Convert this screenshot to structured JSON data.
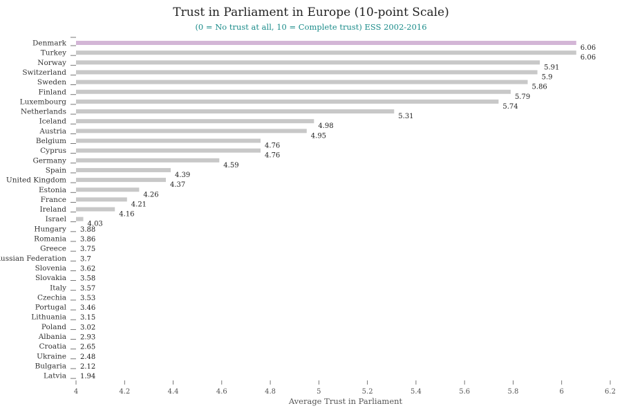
{
  "chart_data": {
    "type": "bar",
    "orientation": "horizontal",
    "title": "Trust in Parliament in Europe (10-point Scale)",
    "subtitle": "(0 = No trust at all, 10 = Complete trust) ESS 2002-2016",
    "xlabel": "Average Trust in Parliament",
    "ylabel": "",
    "xlim": [
      4,
      6.2
    ],
    "xticks": [
      "4",
      "4.2",
      "4.4",
      "4.6",
      "4.8",
      "5",
      "5.2",
      "5.4",
      "5.6",
      "5.8",
      "6",
      "6.2"
    ],
    "categories": [
      "Denmark",
      "Turkey",
      "Norway",
      "Switzerland",
      "Sweden",
      "Finland",
      "Luxembourg",
      "Netherlands",
      "Iceland",
      "Austria",
      "Belgium",
      "Cyprus",
      "Germany",
      "Spain",
      "United Kingdom",
      "Estonia",
      "France",
      "Ireland",
      "Israel",
      "Hungary",
      "Romania",
      "Greece",
      "Russian Federation",
      "Slovenia",
      "Slovakia",
      "Italy",
      "Czechia",
      "Portugal",
      "Lithuania",
      "Poland",
      "Albania",
      "Croatia",
      "Ukraine",
      "Bulgaria",
      "Latvia"
    ],
    "values": [
      6.06,
      6.06,
      5.91,
      5.9,
      5.86,
      5.79,
      5.74,
      5.31,
      4.98,
      4.95,
      4.76,
      4.76,
      4.59,
      4.39,
      4.37,
      4.26,
      4.21,
      4.16,
      4.03,
      3.88,
      3.86,
      3.75,
      3.7,
      3.62,
      3.58,
      3.57,
      3.53,
      3.46,
      3.15,
      3.02,
      2.93,
      2.65,
      2.48,
      2.12,
      1.94
    ],
    "value_labels": [
      "6.06",
      "6.06",
      "5.91",
      "5.9",
      "5.86",
      "5.79",
      "5.74",
      "5.31",
      "4.98",
      "4.95",
      "4.76",
      "4.76",
      "4.59",
      "4.39",
      "4.37",
      "4.26",
      "4.21",
      "4.16",
      "4.03",
      "3.88",
      "3.86",
      "3.75",
      "3.7",
      "3.62",
      "3.58",
      "3.57",
      "3.53",
      "3.46",
      "3.15",
      "3.02",
      "2.93",
      "2.65",
      "2.48",
      "2.12",
      "1.94"
    ],
    "highlight_category": "Denmark",
    "colors": {
      "bar": "#c8c8c8",
      "highlight": "#d3b6d6",
      "axis": "#555555",
      "subtitle": "#1b8c8a"
    },
    "grid": false,
    "legend": "none"
  }
}
